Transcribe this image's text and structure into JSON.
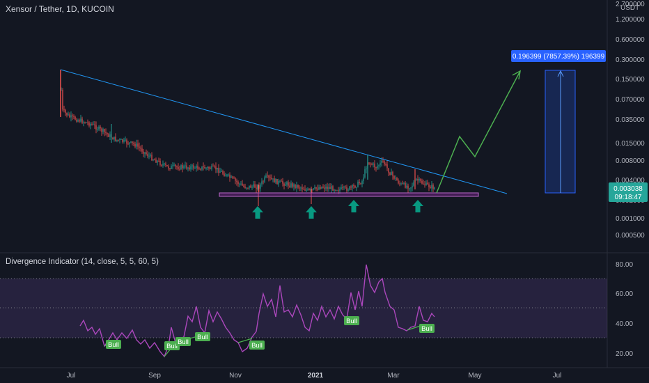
{
  "header": {
    "symbol_line": "Xensor / Tether, 1D, KUCOIN"
  },
  "price_axis": {
    "labels": [
      "2.700000",
      "1.200000",
      "0.600000",
      "0.300000",
      "0.150000",
      "0.070000",
      "0.035000",
      "0.015000",
      "0.008000",
      "0.004000",
      "0.002000",
      "0.001000",
      "0.000500"
    ],
    "currency": "USDT",
    "current_price": "0.003038",
    "countdown": "09:18:47",
    "current_color": "#26a69a"
  },
  "time_axis": {
    "labels": [
      "Jul",
      "Sep",
      "Nov",
      "2021",
      "Mar",
      "May",
      "Jul"
    ],
    "bold_label": "2021"
  },
  "measure": {
    "label": "0.196399 (7857.39%) 196399",
    "color": "#2962ff"
  },
  "indicator": {
    "title": "Divergence Indicator (14, close, 5, 5, 60, 5)",
    "axis_labels": [
      "80.00",
      "60.00",
      "40.00",
      "20.00"
    ],
    "signal_label": "Bull",
    "signal_count": 9,
    "line_color": "#9c27b0",
    "band_color": "#7e57c2"
  },
  "drawings": {
    "trendline_color": "#2196f3",
    "projection_color": "#4caf50",
    "support_color": "#9c27b0",
    "arrow_color": "#089981",
    "arrow_count": 4
  },
  "candles": {
    "up_color": "#26a69a",
    "down_color": "#ef5350"
  }
}
